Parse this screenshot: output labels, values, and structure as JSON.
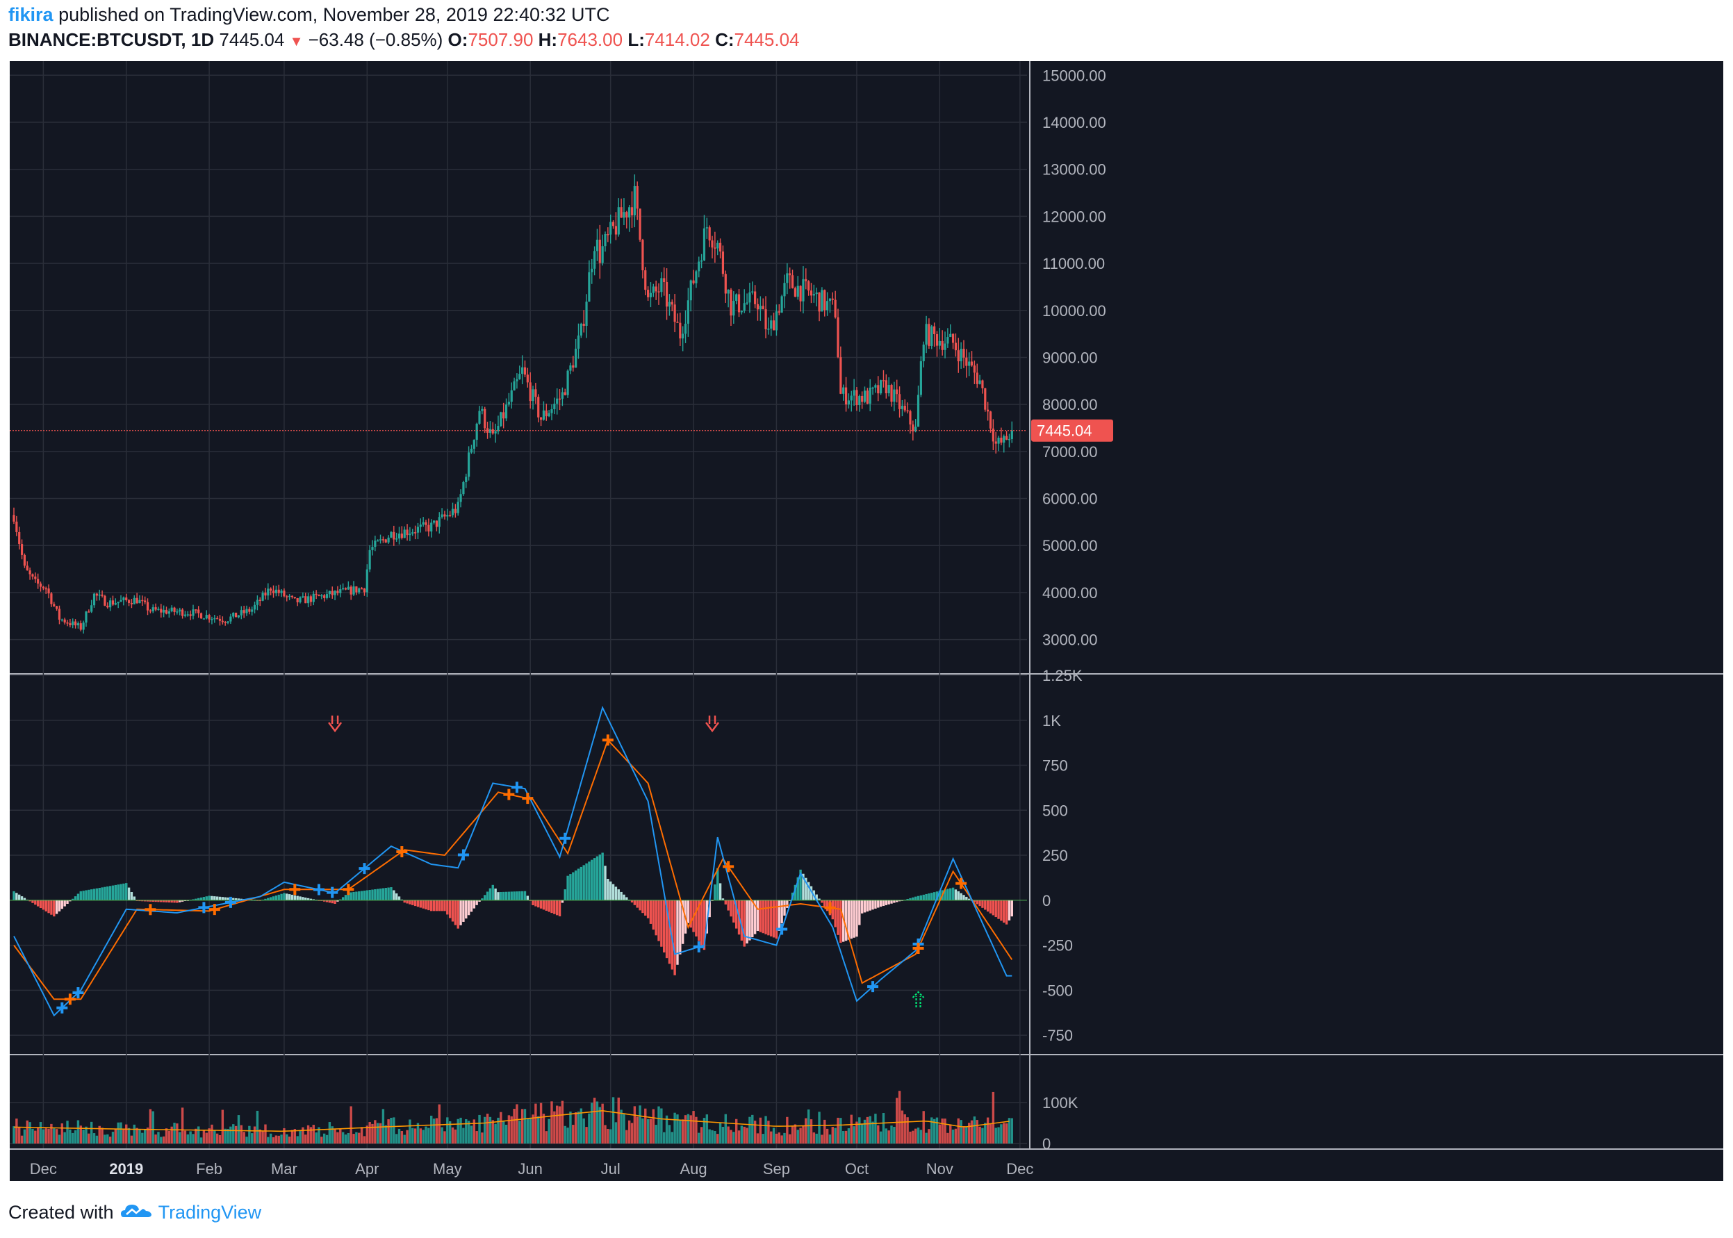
{
  "header": {
    "author": "fikira",
    "published": "published on TradingView.com, November 28, 2019 22:40:32 UTC",
    "symbol": "BINANCE:BTCUSDT, 1D",
    "last": "7445.04",
    "change": "−63.48 (−0.85%)",
    "open_label": "O:",
    "open": "7507.90",
    "high_label": "H:",
    "high": "7643.00",
    "low_label": "L:",
    "low": "7414.02",
    "close_label": "C:",
    "close": "7445.04"
  },
  "footer": {
    "created": "Created with",
    "brand": "TradingView"
  },
  "price_tag": "7445.04",
  "colors": {
    "background": "#131722",
    "up": "#26a69a",
    "down": "#ef5350",
    "macd": "#2196f3",
    "signal": "#ff6d00",
    "hist_up_strong": "#26a69a",
    "hist_up_weak": "#b2dfdb",
    "hist_down_strong": "#ef5350",
    "hist_down_weak": "#ffcdd2",
    "volume_ma": "#ff9800",
    "grid": "#2a2e39",
    "axis_text": "#b2b5be"
  },
  "chart_data": [
    {
      "type": "candlestick",
      "title": "BINANCE:BTCUSDT, 1D",
      "date_range": [
        "2018-11-20",
        "2019-11-28"
      ],
      "y_ticks": [
        "15000.00",
        "14000.00",
        "13000.00",
        "12000.00",
        "11000.00",
        "10000.00",
        "9000.00",
        "8000.00",
        "7000.00",
        "6000.00",
        "5000.00",
        "4000.00",
        "3000.00"
      ],
      "ylim": [
        2300,
        15300
      ],
      "x_ticks": [
        "Dec",
        "2019",
        "Feb",
        "Mar",
        "Apr",
        "May",
        "Jun",
        "Jul",
        "Aug",
        "Sep",
        "Oct",
        "Nov",
        "Dec"
      ],
      "close_path": [
        [
          "2018-11-20",
          5650
        ],
        [
          "2018-11-24",
          4500
        ],
        [
          "2018-11-28",
          4200
        ],
        [
          "2018-12-02",
          4100
        ],
        [
          "2018-12-07",
          3450
        ],
        [
          "2018-12-15",
          3250
        ],
        [
          "2018-12-20",
          3950
        ],
        [
          "2018-12-25",
          3780
        ],
        [
          "2019-01-05",
          3850
        ],
        [
          "2019-01-10",
          3620
        ],
        [
          "2019-01-25",
          3580
        ],
        [
          "2019-02-07",
          3420
        ],
        [
          "2019-02-17",
          3640
        ],
        [
          "2019-02-24",
          4100
        ],
        [
          "2019-03-05",
          3800
        ],
        [
          "2019-03-15",
          3920
        ],
        [
          "2019-03-31",
          4100
        ],
        [
          "2019-04-02",
          4900
        ],
        [
          "2019-04-10",
          5250
        ],
        [
          "2019-04-25",
          5400
        ],
        [
          "2019-05-05",
          5800
        ],
        [
          "2019-05-13",
          7900
        ],
        [
          "2019-05-18",
          7250
        ],
        [
          "2019-05-29",
          8700
        ],
        [
          "2019-06-05",
          7700
        ],
        [
          "2019-06-13",
          8200
        ],
        [
          "2019-06-20",
          9500
        ],
        [
          "2019-06-25",
          11500
        ],
        [
          "2019-06-27",
          11200
        ],
        [
          "2019-07-04",
          11900
        ],
        [
          "2019-07-10",
          12400
        ],
        [
          "2019-07-15",
          10200
        ],
        [
          "2019-07-20",
          10500
        ],
        [
          "2019-07-27",
          9500
        ],
        [
          "2019-08-06",
          11800
        ],
        [
          "2019-08-10",
          11400
        ],
        [
          "2019-08-15",
          10100
        ],
        [
          "2019-08-25",
          10200
        ],
        [
          "2019-08-29",
          9500
        ],
        [
          "2019-09-05",
          10600
        ],
        [
          "2019-09-15",
          10300
        ],
        [
          "2019-09-23",
          10000
        ],
        [
          "2019-09-25",
          8200
        ],
        [
          "2019-10-05",
          8150
        ],
        [
          "2019-10-12",
          8400
        ],
        [
          "2019-10-23",
          7450
        ],
        [
          "2019-10-26",
          9500
        ],
        [
          "2019-11-06",
          9300
        ],
        [
          "2019-11-16",
          8500
        ],
        [
          "2019-11-22",
          7150
        ],
        [
          "2019-11-25",
          7200
        ],
        [
          "2019-11-28",
          7445
        ]
      ]
    },
    {
      "type": "line",
      "title": "MACD",
      "y_ticks": [
        "1.25K",
        "1K",
        "750",
        "500",
        "250",
        "0",
        "-250",
        "-500",
        "-750"
      ],
      "ylim": [
        -850,
        1250
      ],
      "series": [
        {
          "values": [
            [
              "2018-11-20",
              -200
            ],
            [
              "2018-12-05",
              -640
            ],
            [
              "2018-12-15",
              -500
            ],
            [
              "2019-01-01",
              -50
            ],
            [
              "2019-01-20",
              -70
            ],
            [
              "2019-02-20",
              20
            ],
            [
              "2019-03-01",
              100
            ],
            [
              "2019-03-20",
              40
            ],
            [
              "2019-04-10",
              300
            ],
            [
              "2019-04-25",
              200
            ],
            [
              "2019-05-05",
              180
            ],
            [
              "2019-05-18",
              650
            ],
            [
              "2019-05-30",
              620
            ],
            [
              "2019-06-12",
              240
            ],
            [
              "2019-06-28",
              1070
            ],
            [
              "2019-07-15",
              550
            ],
            [
              "2019-07-25",
              -300
            ],
            [
              "2019-08-05",
              -250
            ],
            [
              "2019-08-10",
              350
            ],
            [
              "2019-08-20",
              -200
            ],
            [
              "2019-09-01",
              -250
            ],
            [
              "2019-09-10",
              150
            ],
            [
              "2019-09-22",
              -150
            ],
            [
              "2019-10-01",
              -560
            ],
            [
              "2019-10-10",
              -440
            ],
            [
              "2019-10-23",
              -280
            ],
            [
              "2019-11-06",
              230
            ],
            [
              "2019-11-26",
              -420
            ]
          ]
        },
        {
          "values": [
            [
              "2018-11-20",
              -250
            ],
            [
              "2018-12-05",
              -550
            ],
            [
              "2018-12-15",
              -550
            ],
            [
              "2019-01-05",
              -50
            ],
            [
              "2019-02-01",
              -60
            ],
            [
              "2019-03-01",
              60
            ],
            [
              "2019-03-25",
              60
            ],
            [
              "2019-04-15",
              280
            ],
            [
              "2019-04-30",
              250
            ],
            [
              "2019-05-20",
              600
            ],
            [
              "2019-06-02",
              560
            ],
            [
              "2019-06-15",
              260
            ],
            [
              "2019-06-30",
              890
            ],
            [
              "2019-07-15",
              650
            ],
            [
              "2019-07-30",
              -150
            ],
            [
              "2019-08-12",
              230
            ],
            [
              "2019-08-25",
              -50
            ],
            [
              "2019-09-10",
              -20
            ],
            [
              "2019-09-25",
              -50
            ],
            [
              "2019-10-03",
              -460
            ],
            [
              "2019-10-23",
              -300
            ],
            [
              "2019-11-06",
              160
            ],
            [
              "2019-11-28",
              -330
            ]
          ]
        }
      ]
    },
    {
      "type": "bar",
      "title": "Volume",
      "y_ticks": [
        "100K",
        "0"
      ],
      "ylim": [
        0,
        200000
      ],
      "volume_ma": [
        [
          "2018-11-20",
          40000
        ],
        [
          "2019-01-01",
          35000
        ],
        [
          "2019-03-01",
          30000
        ],
        [
          "2019-04-05",
          40000
        ],
        [
          "2019-05-15",
          50000
        ],
        [
          "2019-06-28",
          80000
        ],
        [
          "2019-07-20",
          60000
        ],
        [
          "2019-09-01",
          42000
        ],
        [
          "2019-09-25",
          45000
        ],
        [
          "2019-10-27",
          55000
        ],
        [
          "2019-11-10",
          40000
        ],
        [
          "2019-11-28",
          55000
        ]
      ]
    }
  ]
}
